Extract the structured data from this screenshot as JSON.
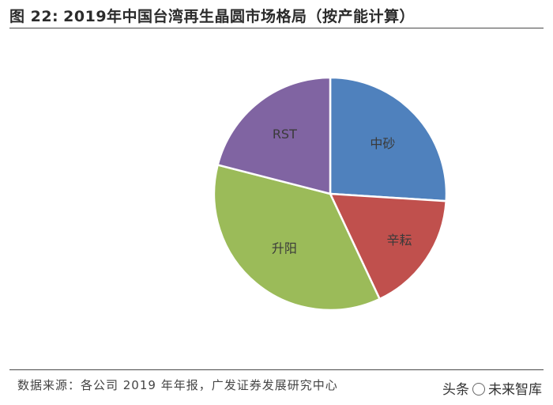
{
  "figure": {
    "number": "图 22:",
    "title": "2019年中国台湾再生晶圆市场格局（按产能计算）"
  },
  "chart_data": {
    "type": "pie",
    "title": "2019年中国台湾再生晶圆市场格局（按产能计算）",
    "slices": [
      {
        "label": "中砂",
        "value": 26,
        "color": "#4f81bd"
      },
      {
        "label": "辛耘",
        "value": 17,
        "color": "#c0504d"
      },
      {
        "label": "升阳",
        "value": 36,
        "color": "#9bbb59"
      },
      {
        "label": "RST",
        "value": 21,
        "color": "#8064a2"
      }
    ],
    "start_angle_deg": 0,
    "direction": "clockwise"
  },
  "source": "数据来源：各公司 2019 年年报，广发证券发展研究中心",
  "watermark": {
    "prefix": "头条",
    "name": "未来智库"
  }
}
